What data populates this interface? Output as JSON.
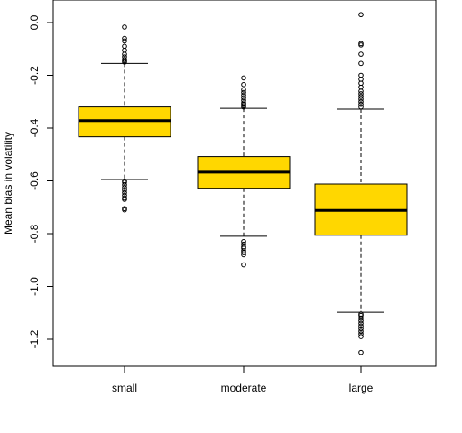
{
  "chart_data": {
    "type": "boxplot",
    "title": "",
    "xlabel": "",
    "ylabel": "Mean bias in volatility",
    "ylim": [
      -1.3,
      0.07
    ],
    "yticks": [
      0.0,
      -0.2,
      -0.4,
      -0.6,
      -0.8,
      -1.0,
      -1.2
    ],
    "ytick_labels": [
      "0.0",
      "-0.2",
      "-0.4",
      "-0.6",
      "-0.8",
      "-1.0",
      "-1.2"
    ],
    "categories": [
      "small",
      "moderate",
      "large"
    ],
    "box_fill": "#FFD700",
    "boxes": [
      {
        "name": "small",
        "whisker_low": -0.595,
        "q1": -0.433,
        "median": -0.372,
        "q3": -0.32,
        "whisker_high": -0.155,
        "outliers_high": [
          -0.017,
          -0.06,
          -0.07,
          -0.09,
          -0.105,
          -0.12,
          -0.13,
          -0.14,
          -0.145,
          -0.15
        ],
        "outliers_low": [
          -0.6,
          -0.605,
          -0.615,
          -0.625,
          -0.635,
          -0.645,
          -0.655,
          -0.665,
          -0.67,
          -0.705,
          -0.71
        ]
      },
      {
        "name": "moderate",
        "whisker_low": -0.81,
        "q1": -0.628,
        "median": -0.567,
        "q3": -0.508,
        "whisker_high": -0.325,
        "outliers_high": [
          -0.21,
          -0.235,
          -0.255,
          -0.265,
          -0.275,
          -0.285,
          -0.295,
          -0.305,
          -0.31,
          -0.315,
          -0.32
        ],
        "outliers_low": [
          -0.83,
          -0.84,
          -0.85,
          -0.855,
          -0.865,
          -0.872,
          -0.88,
          -0.918
        ]
      },
      {
        "name": "large",
        "whisker_low": -1.098,
        "q1": -0.806,
        "median": -0.712,
        "q3": -0.612,
        "whisker_high": -0.328,
        "outliers_high": [
          0.03,
          -0.08,
          -0.085,
          -0.12,
          -0.155,
          -0.2,
          -0.215,
          -0.23,
          -0.245,
          -0.26,
          -0.27,
          -0.28,
          -0.29,
          -0.3,
          -0.31,
          -0.32
        ],
        "outliers_low": [
          -1.105,
          -1.11,
          -1.12,
          -1.13,
          -1.14,
          -1.15,
          -1.16,
          -1.17,
          -1.18,
          -1.19,
          -1.25
        ]
      }
    ]
  }
}
